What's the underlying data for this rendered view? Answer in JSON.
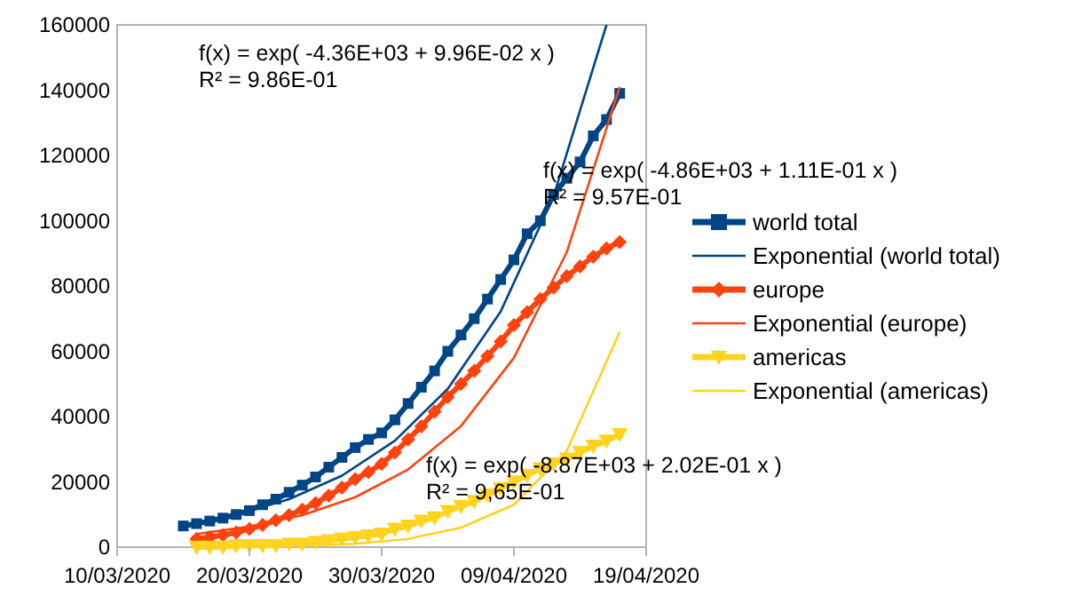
{
  "chart_data": {
    "type": "line",
    "xlim": [
      "2020-03-10",
      "2020-04-19"
    ],
    "xticks": [
      {
        "value": "2020-03-10",
        "label": "10/03/2020"
      },
      {
        "value": "2020-03-20",
        "label": "20/03/2020"
      },
      {
        "value": "2020-03-30",
        "label": "30/03/2020"
      },
      {
        "value": "2020-04-09",
        "label": "09/04/2020"
      },
      {
        "value": "2020-04-19",
        "label": "19/04/2020"
      }
    ],
    "ylim": [
      0,
      160000
    ],
    "yticks": [
      0,
      20000,
      40000,
      60000,
      80000,
      100000,
      120000,
      140000,
      160000
    ],
    "grid": false,
    "legend": "right",
    "annotations": [
      "f(x) = exp( -4.36E+03 + 9.96E-02 x )\nR² = 9.86E-01",
      "f(x) = exp( -4.86E+03 + 1.11E-01 x )\nR² = 9.57E-01",
      "f(x) = exp( -8.87E+03 + 2.02E-01 x )\nR² = 9,65E-01"
    ],
    "series": [
      {
        "name": "world total",
        "color": "#004586",
        "marker": "square",
        "x": [
          "2020-03-15",
          "2020-03-16",
          "2020-03-17",
          "2020-03-18",
          "2020-03-19",
          "2020-03-20",
          "2020-03-21",
          "2020-03-22",
          "2020-03-23",
          "2020-03-24",
          "2020-03-25",
          "2020-03-26",
          "2020-03-27",
          "2020-03-28",
          "2020-03-29",
          "2020-03-30",
          "2020-03-31",
          "2020-04-01",
          "2020-04-02",
          "2020-04-03",
          "2020-04-04",
          "2020-04-05",
          "2020-04-06",
          "2020-04-07",
          "2020-04-08",
          "2020-04-09",
          "2020-04-10",
          "2020-04-11",
          "2020-04-12",
          "2020-04-13",
          "2020-04-14",
          "2020-04-15",
          "2020-04-16",
          "2020-04-17"
        ],
        "values": [
          6500,
          7200,
          8000,
          8900,
          10000,
          11200,
          13000,
          14700,
          16800,
          19000,
          21500,
          24500,
          27500,
          30500,
          33000,
          35000,
          39000,
          44000,
          49000,
          54000,
          60000,
          65000,
          70000,
          76000,
          82000,
          88000,
          96000,
          100000,
          108000,
          113000,
          118000,
          126000,
          131000,
          139000
        ]
      },
      {
        "name": "Exponential (world total)",
        "color": "#004586",
        "marker": "none",
        "x": [
          "2020-03-15",
          "2020-03-19",
          "2020-03-23",
          "2020-03-27",
          "2020-03-31",
          "2020-04-04",
          "2020-04-08",
          "2020-04-12",
          "2020-04-16"
        ],
        "values": [
          6600,
          9900,
          14700,
          21900,
          32600,
          48500,
          72200,
          107500,
          160000
        ]
      },
      {
        "name": "europe",
        "color": "#ff420e",
        "marker": "diamond",
        "x": [
          "2020-03-16",
          "2020-03-17",
          "2020-03-18",
          "2020-03-19",
          "2020-03-20",
          "2020-03-21",
          "2020-03-22",
          "2020-03-23",
          "2020-03-24",
          "2020-03-25",
          "2020-03-26",
          "2020-03-27",
          "2020-03-28",
          "2020-03-29",
          "2020-03-30",
          "2020-03-31",
          "2020-04-01",
          "2020-04-02",
          "2020-04-03",
          "2020-04-04",
          "2020-04-05",
          "2020-04-06",
          "2020-04-07",
          "2020-04-08",
          "2020-04-09",
          "2020-04-10",
          "2020-04-11",
          "2020-04-12",
          "2020-04-13",
          "2020-04-14",
          "2020-04-15",
          "2020-04-16",
          "2020-04-17"
        ],
        "values": [
          2500,
          3000,
          3700,
          4500,
          5600,
          6800,
          8200,
          9800,
          11500,
          13500,
          15800,
          18200,
          20800,
          23000,
          25500,
          29000,
          33000,
          37000,
          41500,
          46000,
          50000,
          54000,
          58500,
          63000,
          68000,
          72000,
          76000,
          79500,
          83000,
          86000,
          89000,
          91500,
          93500
        ]
      },
      {
        "name": "Exponential (europe)",
        "color": "#ff420e",
        "marker": "none",
        "x": [
          "2020-03-16",
          "2020-03-20",
          "2020-03-24",
          "2020-03-28",
          "2020-04-01",
          "2020-04-05",
          "2020-04-09",
          "2020-04-13",
          "2020-04-17"
        ],
        "values": [
          4000,
          6300,
          9800,
          15300,
          23800,
          37100,
          58000,
          90400,
          141000
        ]
      },
      {
        "name": "americas",
        "color": "#ffd320",
        "marker": "triangle",
        "x": [
          "2020-03-16",
          "2020-03-17",
          "2020-03-18",
          "2020-03-19",
          "2020-03-20",
          "2020-03-21",
          "2020-03-22",
          "2020-03-23",
          "2020-03-24",
          "2020-03-25",
          "2020-03-26",
          "2020-03-27",
          "2020-03-28",
          "2020-03-29",
          "2020-03-30",
          "2020-03-31",
          "2020-04-01",
          "2020-04-02",
          "2020-04-03",
          "2020-04-04",
          "2020-04-05",
          "2020-04-06",
          "2020-04-07",
          "2020-04-08",
          "2020-04-09",
          "2020-04-10",
          "2020-04-11",
          "2020-04-12",
          "2020-04-13",
          "2020-04-14",
          "2020-04-15",
          "2020-04-16",
          "2020-04-17"
        ],
        "values": [
          0,
          0,
          0,
          500,
          500,
          500,
          500,
          1000,
          1000,
          1500,
          2000,
          2500,
          3000,
          3500,
          4000,
          5500,
          6500,
          8000,
          9000,
          11000,
          12500,
          14000,
          16000,
          18000,
          20000,
          22000,
          24000,
          25500,
          27000,
          29000,
          31000,
          32500,
          34500
        ]
      },
      {
        "name": "Exponential (americas)",
        "color": "#ffd320",
        "marker": "none",
        "x": [
          "2020-03-16",
          "2020-03-20",
          "2020-03-24",
          "2020-03-28",
          "2020-04-01",
          "2020-04-05",
          "2020-04-09",
          "2020-04-13",
          "2020-04-17"
        ],
        "values": [
          0,
          0,
          500,
          1000,
          2500,
          6000,
          13000,
          29500,
          66000
        ]
      }
    ]
  }
}
